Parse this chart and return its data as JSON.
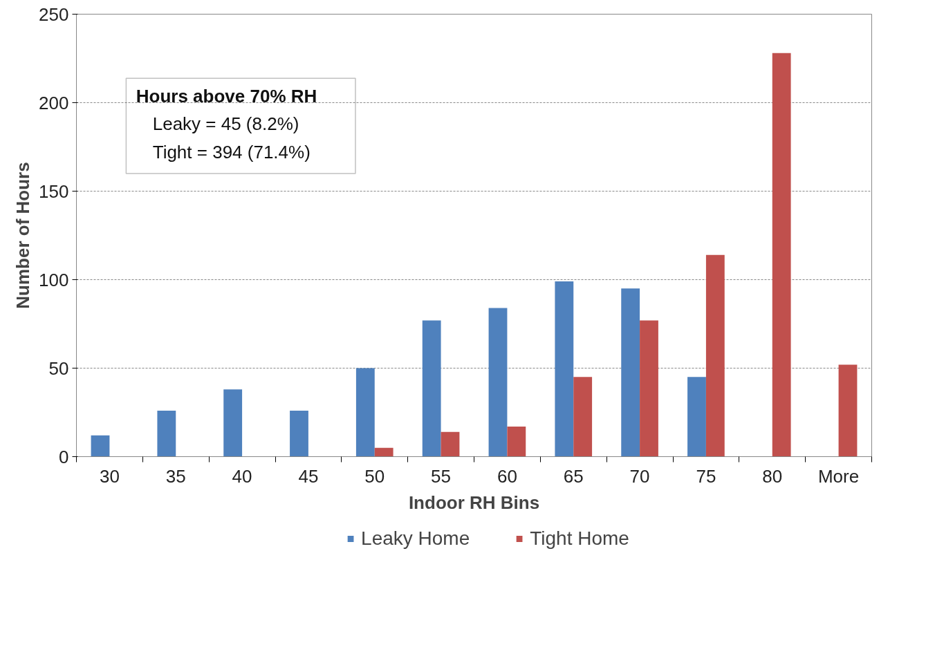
{
  "chart_data": {
    "type": "bar",
    "xlabel": "Indoor RH Bins",
    "ylabel": "Number of Hours",
    "categories": [
      "30",
      "35",
      "40",
      "45",
      "50",
      "55",
      "60",
      "65",
      "70",
      "75",
      "80",
      "More"
    ],
    "series": [
      {
        "name": "Leaky Home",
        "color": "#4f81bd",
        "values": [
          12,
          26,
          38,
          26,
          50,
          77,
          84,
          99,
          95,
          45,
          0,
          0
        ]
      },
      {
        "name": "Tight Home",
        "color": "#c0504d",
        "values": [
          0,
          0,
          0,
          0,
          5,
          14,
          17,
          45,
          77,
          114,
          228,
          52
        ]
      }
    ],
    "ylim": [
      0,
      250
    ],
    "yticks": [
      0,
      50,
      100,
      150,
      200,
      250
    ],
    "grid": "y",
    "legend": "bottom",
    "annotations": [
      "Hours above 70% RH",
      "Leaky = 45 (8.2%)",
      "Tight = 394 (71.4%)"
    ]
  }
}
